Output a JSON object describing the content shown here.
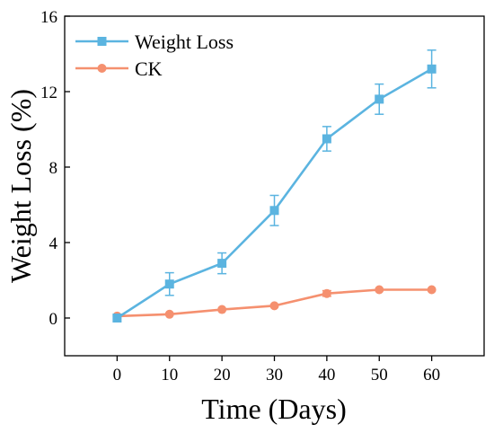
{
  "chart_data": {
    "type": "line",
    "xlabel": "Time (Days)",
    "ylabel": "Weight Loss (%)",
    "x": [
      0,
      10,
      20,
      30,
      40,
      50,
      60
    ],
    "xlim": [
      -10,
      70
    ],
    "ylim": [
      -2,
      16
    ],
    "xticks": [
      "0",
      "10",
      "20",
      "30",
      "40",
      "50",
      "60"
    ],
    "yticks": [
      "0",
      "4",
      "8",
      "12",
      "16"
    ],
    "grid": false,
    "legend_position": "top-left",
    "series": [
      {
        "name": "Weight Loss",
        "color": "#5BB4E0",
        "marker": "square",
        "values": [
          0.0,
          1.8,
          2.9,
          5.7,
          9.5,
          11.6,
          13.2
        ],
        "errors": [
          0.0,
          0.6,
          0.55,
          0.8,
          0.65,
          0.8,
          1.0
        ]
      },
      {
        "name": "CK",
        "color": "#F5906F",
        "marker": "circle",
        "values": [
          0.1,
          0.2,
          0.45,
          0.65,
          1.3,
          1.5,
          1.5
        ],
        "errors": [
          0.0,
          0.0,
          0.0,
          0.0,
          0.15,
          0.0,
          0.0
        ]
      }
    ]
  }
}
